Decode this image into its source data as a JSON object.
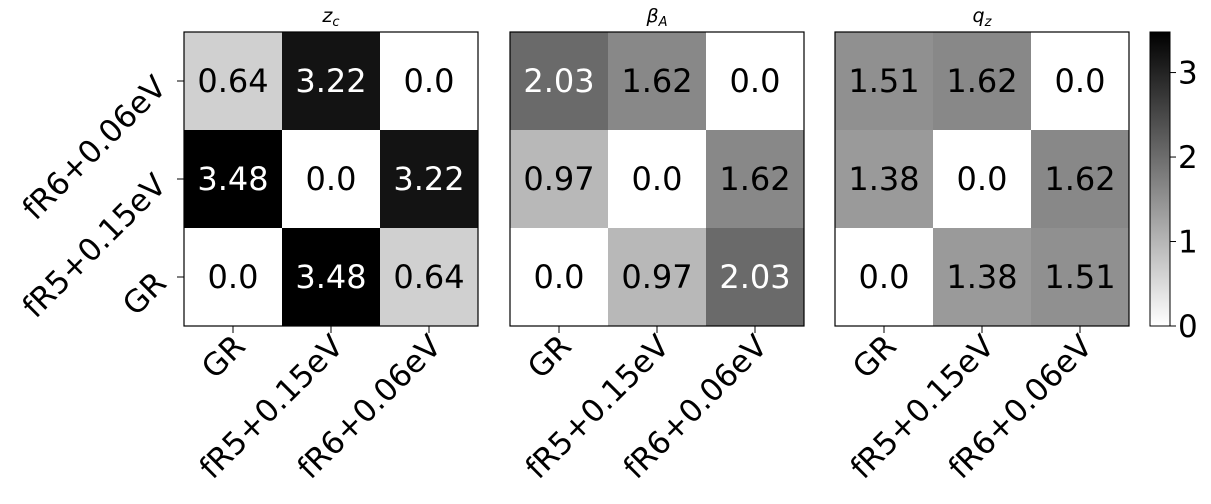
{
  "chart_data": {
    "type": "heatmap",
    "colormap": "gray_r",
    "categories": [
      "GR",
      "fR5+0.15eV",
      "fR6+0.06eV"
    ],
    "row_labels": [
      "fR6+0.06eV",
      "fR5+0.15eV",
      "GR"
    ],
    "col_labels": [
      "GR",
      "fR5+0.15eV",
      "fR6+0.06eV"
    ],
    "vmin": 0,
    "vmax": 3.48,
    "panels": [
      {
        "title_var": "z",
        "title_sub": "c",
        "values": [
          [
            0.64,
            3.22,
            0.0
          ],
          [
            3.48,
            0.0,
            3.22
          ],
          [
            0.0,
            3.48,
            0.64
          ]
        ],
        "labels": [
          [
            "0.64",
            "3.22",
            "0.0"
          ],
          [
            "3.48",
            "0.0",
            "3.22"
          ],
          [
            "0.0",
            "3.48",
            "0.64"
          ]
        ]
      },
      {
        "title_var": "β",
        "title_sub": "A",
        "values": [
          [
            2.03,
            1.62,
            0.0
          ],
          [
            0.97,
            0.0,
            1.62
          ],
          [
            0.0,
            0.97,
            2.03
          ]
        ],
        "labels": [
          [
            "2.03",
            "1.62",
            "0.0"
          ],
          [
            "0.97",
            "0.0",
            "1.62"
          ],
          [
            "0.0",
            "0.97",
            "2.03"
          ]
        ]
      },
      {
        "title_var": "q",
        "title_sub": "z",
        "values": [
          [
            1.51,
            1.62,
            0.0
          ],
          [
            1.38,
            0.0,
            1.62
          ],
          [
            0.0,
            1.38,
            1.51
          ]
        ],
        "labels": [
          [
            "1.51",
            "1.62",
            "0.0"
          ],
          [
            "1.38",
            "0.0",
            "1.62"
          ],
          [
            "0.0",
            "1.38",
            "1.51"
          ]
        ]
      }
    ],
    "colorbar": {
      "ticks": [
        0,
        1,
        2,
        3
      ],
      "tick_labels": [
        "0",
        "1",
        "2",
        "3"
      ]
    }
  }
}
